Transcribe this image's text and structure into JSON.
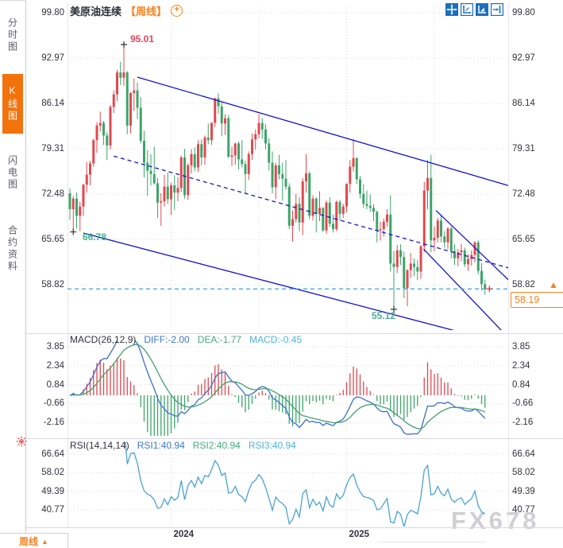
{
  "app": {
    "sidebar": {
      "tabs": [
        {
          "label": "分时图",
          "active": false
        },
        {
          "label": "K线图",
          "active": true
        },
        {
          "label": "闪电图",
          "active": false
        },
        {
          "label": "合约资料",
          "active": false
        }
      ]
    },
    "title": {
      "symbol": "美原油连续",
      "period_tag": "【周线】",
      "add_icon": "+"
    },
    "toolbar_icons": [
      "crosshair-move-icon",
      "axis-zoom-icon",
      "axis-scale-icon",
      "collapse-right-icon"
    ],
    "bottom_bar": {
      "period_label": "周线",
      "arrow": "▲"
    },
    "watermark": "FX678"
  },
  "main_chart": {
    "annotations": {
      "high": "95.01",
      "low_left": "66.78",
      "low_right": "55.12",
      "last_price": "58.19"
    }
  },
  "macd_panel": {
    "title": "MACD(26,12,9)",
    "diff_label": "DIFF:-2.00",
    "dea_label": "DEA:-1.77",
    "macd_label": "MACD:-0.45"
  },
  "rsi_panel": {
    "title": "RSI(14,14,14)",
    "rsi1_label": "RSI1:40.94",
    "rsi2_label": "RSI2:40.94",
    "rsi3_label": "RSI3:40.94"
  },
  "chart_data": {
    "type": "candlestick",
    "symbol": "美原油连续 (WTI crude oil continuous)",
    "timeframe": "weekly",
    "title": "美原油连续【周线】",
    "y_ticks_main": [
      99.8,
      92.97,
      86.14,
      79.31,
      72.48,
      65.65,
      58.82
    ],
    "x_ticks": [
      {
        "label": "2024",
        "index": 30
      },
      {
        "label": "2025",
        "index": 82
      }
    ],
    "mid_gridline_indices": [
      56,
      108
    ],
    "key_points": {
      "high": 95.01,
      "low_2023": 66.78,
      "low_2025": 55.12,
      "last_close": 58.19
    },
    "candles": {
      "format": [
        "open",
        "high",
        "low",
        "close"
      ],
      "start_week": "2023-06-05",
      "interval": "1W",
      "values": [
        [
          72.6,
          73.3,
          68.6,
          70.2
        ],
        [
          70.2,
          72.2,
          66.78,
          71.8
        ],
        [
          71.8,
          72.7,
          67.3,
          69.2
        ],
        [
          69.2,
          71.3,
          66.9,
          70.6
        ],
        [
          70.6,
          74.0,
          69.2,
          73.9
        ],
        [
          73.9,
          77.3,
          72.7,
          75.4
        ],
        [
          75.4,
          77.5,
          73.8,
          77.1
        ],
        [
          77.1,
          80.8,
          76.6,
          80.6
        ],
        [
          80.6,
          83.3,
          78.7,
          82.8
        ],
        [
          82.8,
          84.9,
          81.9,
          83.2
        ],
        [
          83.2,
          83.5,
          79.9,
          81.3
        ],
        [
          81.3,
          81.8,
          77.6,
          79.8
        ],
        [
          79.8,
          85.9,
          79.2,
          85.6
        ],
        [
          85.6,
          88.1,
          84.7,
          87.5
        ],
        [
          87.5,
          91.2,
          86.5,
          90.8
        ],
        [
          90.8,
          92.4,
          88.9,
          90.0
        ],
        [
          90.0,
          95.01,
          88.8,
          90.8
        ],
        [
          90.8,
          91.0,
          81.5,
          82.8
        ],
        [
          82.8,
          87.8,
          81.6,
          87.7
        ],
        [
          87.7,
          89.9,
          85.0,
          88.1
        ],
        [
          88.1,
          89.3,
          83.8,
          85.5
        ],
        [
          85.5,
          87.1,
          80.1,
          80.5
        ],
        [
          80.5,
          82.0,
          75.0,
          77.2
        ],
        [
          77.2,
          79.1,
          72.2,
          76.0
        ],
        [
          76.0,
          78.5,
          73.8,
          75.5
        ],
        [
          75.5,
          79.6,
          73.9,
          74.1
        ],
        [
          74.1,
          74.9,
          68.9,
          71.2
        ],
        [
          71.2,
          72.6,
          67.7,
          71.4
        ],
        [
          71.4,
          75.4,
          70.6,
          73.6
        ],
        [
          73.6,
          75.7,
          71.0,
          71.7
        ],
        [
          71.7,
          74.2,
          69.3,
          73.8
        ],
        [
          73.8,
          75.3,
          70.1,
          72.7
        ],
        [
          72.7,
          75.0,
          71.4,
          73.4
        ],
        [
          73.4,
          78.3,
          72.8,
          78.0
        ],
        [
          78.0,
          79.3,
          71.8,
          72.3
        ],
        [
          72.3,
          77.1,
          71.6,
          76.8
        ],
        [
          76.8,
          79.2,
          75.6,
          78.5
        ],
        [
          78.5,
          79.5,
          75.9,
          76.5
        ],
        [
          76.5,
          80.6,
          75.8,
          80.0
        ],
        [
          80.0,
          80.7,
          76.8,
          78.0
        ],
        [
          78.0,
          81.3,
          76.9,
          81.0
        ],
        [
          81.0,
          83.1,
          80.0,
          80.6
        ],
        [
          80.6,
          83.3,
          79.9,
          83.2
        ],
        [
          83.2,
          87.0,
          82.6,
          86.9
        ],
        [
          86.9,
          87.67,
          84.6,
          85.7
        ],
        [
          85.7,
          86.3,
          81.2,
          83.1
        ],
        [
          83.1,
          84.5,
          81.4,
          83.9
        ],
        [
          83.9,
          84.4,
          77.9,
          78.1
        ],
        [
          78.1,
          79.6,
          76.7,
          78.3
        ],
        [
          78.3,
          80.2,
          76.9,
          80.1
        ],
        [
          80.1,
          80.4,
          76.2,
          77.7
        ],
        [
          77.7,
          80.6,
          76.5,
          77.0
        ],
        [
          77.0,
          77.5,
          72.5,
          75.5
        ],
        [
          75.5,
          78.9,
          74.6,
          78.5
        ],
        [
          78.5,
          81.6,
          77.6,
          80.7
        ],
        [
          80.7,
          82.2,
          79.2,
          81.5
        ],
        [
          81.5,
          84.5,
          80.9,
          83.2
        ],
        [
          83.2,
          83.9,
          80.8,
          82.2
        ],
        [
          82.2,
          83.0,
          79.2,
          80.1
        ],
        [
          80.1,
          80.9,
          76.0,
          77.2
        ],
        [
          77.2,
          78.9,
          72.6,
          73.5
        ],
        [
          73.5,
          77.2,
          71.7,
          76.8
        ],
        [
          76.8,
          78.4,
          74.7,
          75.5
        ],
        [
          75.5,
          77.2,
          71.5,
          74.8
        ],
        [
          74.8,
          77.6,
          73.1,
          73.6
        ],
        [
          73.6,
          74.1,
          67.2,
          67.7
        ],
        [
          67.7,
          70.0,
          65.3,
          68.7
        ],
        [
          68.7,
          72.5,
          68.2,
          71.0
        ],
        [
          71.0,
          72.0,
          66.9,
          68.2
        ],
        [
          68.2,
          74.9,
          66.3,
          74.4
        ],
        [
          74.4,
          78.5,
          72.7,
          75.6
        ],
        [
          75.6,
          75.9,
          68.7,
          69.2
        ],
        [
          69.2,
          72.3,
          68.5,
          71.8
        ],
        [
          71.8,
          72.0,
          66.7,
          69.5
        ],
        [
          69.5,
          72.9,
          68.4,
          70.4
        ],
        [
          70.4,
          70.5,
          66.8,
          67.0
        ],
        [
          67.0,
          71.5,
          66.5,
          71.2
        ],
        [
          71.2,
          72.0,
          67.5,
          68.0
        ],
        [
          68.0,
          69.4,
          66.7,
          67.2
        ],
        [
          67.2,
          71.5,
          66.9,
          71.3
        ],
        [
          71.3,
          71.6,
          68.5,
          69.5
        ],
        [
          69.5,
          71.0,
          68.9,
          70.6
        ],
        [
          70.6,
          74.1,
          69.7,
          74.0
        ],
        [
          74.0,
          77.6,
          72.7,
          76.6
        ],
        [
          76.6,
          80.77,
          75.9,
          77.9
        ],
        [
          77.9,
          78.0,
          74.0,
          74.7
        ],
        [
          74.7,
          75.2,
          71.8,
          72.5
        ],
        [
          72.5,
          74.0,
          70.4,
          71.0
        ],
        [
          71.0,
          73.0,
          70.2,
          70.7
        ],
        [
          70.7,
          72.4,
          69.8,
          70.4
        ],
        [
          70.4,
          71.0,
          68.4,
          69.8
        ],
        [
          69.8,
          70.0,
          65.2,
          67.0
        ],
        [
          67.0,
          68.3,
          65.5,
          67.2
        ],
        [
          67.2,
          68.8,
          66.1,
          68.3
        ],
        [
          68.3,
          70.2,
          67.6,
          69.4
        ],
        [
          69.4,
          72.3,
          60.8,
          62.0
        ],
        [
          62.0,
          63.9,
          55.12,
          61.5
        ],
        [
          61.5,
          64.8,
          60.6,
          64.0
        ],
        [
          64.0,
          64.9,
          61.8,
          63.0
        ],
        [
          63.0,
          63.8,
          56.8,
          58.3
        ],
        [
          58.3,
          61.2,
          55.6,
          61.0
        ],
        [
          61.0,
          63.6,
          59.9,
          62.0
        ],
        [
          62.0,
          62.8,
          60.1,
          61.5
        ],
        [
          61.5,
          62.5,
          59.5,
          60.8
        ],
        [
          60.8,
          64.8,
          59.7,
          64.6
        ],
        [
          64.6,
          74.3,
          63.7,
          73.0
        ],
        [
          73.0,
          77.6,
          70.2,
          74.9
        ],
        [
          74.9,
          78.4,
          63.7,
          65.5
        ],
        [
          65.5,
          67.6,
          63.9,
          65.9
        ],
        [
          65.9,
          68.9,
          65.2,
          68.5
        ],
        [
          68.5,
          69.4,
          65.2,
          66.1
        ],
        [
          66.1,
          66.9,
          64.4,
          65.2
        ],
        [
          65.2,
          67.5,
          64.2,
          67.3
        ],
        [
          67.3,
          67.6,
          62.8,
          63.9
        ],
        [
          63.9,
          64.9,
          61.8,
          62.8
        ],
        [
          62.8,
          64.2,
          61.6,
          63.7
        ],
        [
          63.7,
          65.0,
          62.4,
          64.0
        ],
        [
          64.0,
          64.4,
          61.5,
          61.9
        ],
        [
          61.9,
          63.4,
          60.9,
          62.7
        ],
        [
          62.7,
          64.0,
          61.7,
          63.3
        ],
        [
          63.3,
          65.4,
          62.2,
          65.2
        ],
        [
          65.2,
          65.5,
          60.4,
          60.9
        ],
        [
          60.9,
          62.1,
          58.0,
          58.9
        ],
        [
          58.9,
          59.6,
          57.3,
          58.19
        ]
      ]
    },
    "price_line": 58.19,
    "trendlines": [
      {
        "i1": 20,
        "p1": 90.1,
        "i2": 131,
        "p2": 73.6,
        "style": "solid"
      },
      {
        "i1": 13,
        "p1": 78.2,
        "i2": 131,
        "p2": 61.2,
        "style": "dashed"
      },
      {
        "i1": 4,
        "p1": 66.6,
        "i2": 129,
        "p2": 49.9,
        "style": "solid"
      },
      {
        "i1": 108.5,
        "p1": 70.0,
        "i2": 131.5,
        "p2": 58.8,
        "style": "solid"
      },
      {
        "i1": 104.8,
        "p1": 64.2,
        "i2": 131.5,
        "p2": 50.0,
        "style": "solid"
      }
    ],
    "markers": [
      {
        "i": 16,
        "p": 95.01,
        "color": "#33333d"
      },
      {
        "i": 1,
        "p": 66.78,
        "color": "#33333d"
      },
      {
        "i": 96,
        "p": 55.12,
        "color": "#33333d"
      },
      {
        "i": 124.3,
        "p": 58.19,
        "color": "#e03030"
      }
    ],
    "indicators": {
      "macd": {
        "params": [
          26,
          12,
          9
        ],
        "last": {
          "diff": -2.0,
          "dea": -1.77,
          "macd": -0.45
        },
        "y_ticks": [
          3.85,
          2.34,
          0.84,
          -0.66,
          -2.16
        ]
      },
      "rsi": {
        "params": [
          14,
          14,
          14
        ],
        "last": {
          "rsi1": 40.94,
          "rsi2": 40.94,
          "rsi3": 40.94
        },
        "y_ticks": [
          66.64,
          58.02,
          49.39,
          40.77
        ]
      }
    },
    "colors": {
      "up": "#e2484f",
      "down": "#3da56a",
      "trendline": "#1414cc",
      "price_line": "#35a3dc",
      "diff_line": "#3b6fd0",
      "dea_line": "#43a06c",
      "rsi_line": "#4aa3d4",
      "grid": "#d9d9e2",
      "accent_orange": "#f58220",
      "annotation_green": "#45b08c",
      "annotation_red": "#e8455f"
    },
    "legend_position": "top-left",
    "grid": true
  }
}
